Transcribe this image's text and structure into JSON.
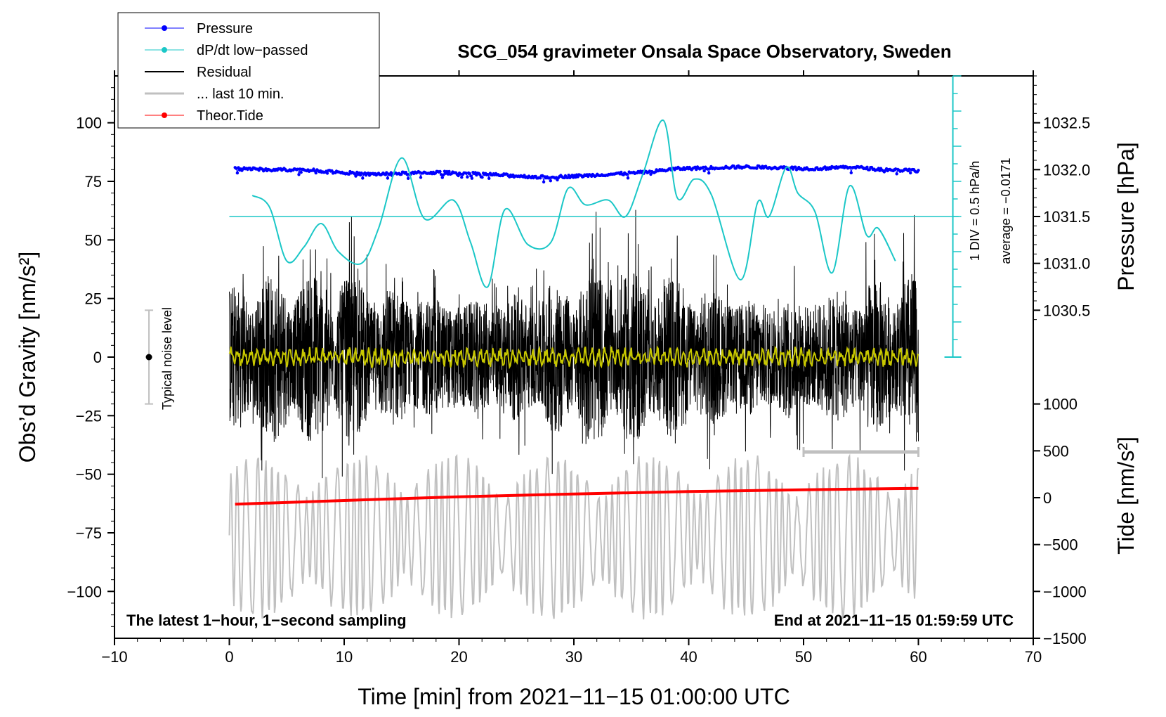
{
  "chart_data": {
    "type": "line",
    "title": "SCG_054 gravimeter Onsala Space Observatory, Sweden",
    "xlabel": "Time [min] from 2021−11−15 01:00:00 UTC",
    "ylabel_left": "Obs’d Gravity [nm/s²]",
    "ylabel_right_pressure": "Pressure [hPa]",
    "ylabel_right_tide": "Tide [nm/s²]",
    "xlim": [
      -10,
      70
    ],
    "ylim_left": [
      -120,
      120
    ],
    "x_ticks": [
      -10,
      0,
      10,
      20,
      30,
      40,
      50,
      60,
      70
    ],
    "x_tick_labels": [
      "−10",
      "0",
      "10",
      "20",
      "30",
      "40",
      "50",
      "60",
      "70"
    ],
    "y_ticks_left": [
      100,
      75,
      50,
      25,
      0,
      -25,
      -50,
      -75,
      -100
    ],
    "y_tick_labels_left": [
      "100",
      "75",
      "50",
      "25",
      "0",
      "−25",
      "−50",
      "−75",
      "−100"
    ],
    "pressure_axis": {
      "ticks": [
        1032.5,
        1032.0,
        1031.5,
        1031.0,
        1030.5
      ],
      "tick_labels": [
        "1032.5",
        "1032.0",
        "1031.5",
        "1031.0",
        "1030.5"
      ],
      "left_equivalent": [
        [
          1032.5,
          100
        ],
        [
          1030.5,
          20
        ]
      ]
    },
    "tide_axis": {
      "ticks": [
        1000,
        500,
        0,
        -500,
        -1000,
        -1500
      ],
      "tick_labels": [
        "1000",
        "500",
        "0",
        "−500",
        "−1000",
        "−1500"
      ],
      "left_equivalent": [
        [
          1000,
          -20
        ],
        [
          -1500,
          -120
        ]
      ]
    },
    "series": [
      {
        "name": "Pressure",
        "color": "#0000ff",
        "axis": "pressure",
        "x": [
          0.5,
          3,
          6,
          9,
          12,
          15,
          18,
          21,
          24,
          27,
          30,
          33,
          36,
          39,
          42,
          45,
          48,
          51,
          54,
          57,
          60
        ],
        "values": [
          1032.02,
          1032.0,
          1032.0,
          1031.98,
          1031.95,
          1031.96,
          1031.97,
          1031.96,
          1031.94,
          1031.92,
          1031.93,
          1031.95,
          1031.97,
          1032.01,
          1032.02,
          1032.03,
          1032.02,
          1032.01,
          1032.03,
          1032.0,
          1031.99
        ]
      },
      {
        "name": "dP/dt low−passed",
        "color": "#1bc7c7",
        "axis": "left",
        "x": [
          2,
          3.5,
          5,
          6.5,
          8,
          9.5,
          11.5,
          13,
          15,
          17,
          19.5,
          21,
          22.5,
          24,
          26,
          28,
          29.5,
          31,
          33,
          34.5,
          36,
          37.8,
          39,
          40.5,
          42,
          44.5,
          46,
          47,
          48.5,
          49.5,
          51,
          52.5,
          54,
          55.5,
          56.5,
          58
        ],
        "values": [
          69,
          64,
          41,
          47,
          57,
          45,
          40,
          55,
          85,
          59,
          67,
          49,
          30,
          63,
          48,
          49,
          72,
          65,
          67,
          60,
          78,
          101,
          68,
          76,
          69,
          33,
          66,
          60,
          81,
          70,
          62,
          36,
          73,
          52,
          55,
          41
        ]
      },
      {
        "name": "Residual",
        "color": "#000000",
        "axis": "left",
        "amplitude_range": [
          -50,
          50
        ]
      },
      {
        "name": "... last 10 min.",
        "color": "#c0c0c0",
        "axis": "tide",
        "amplitude_range": [
          -1500,
          500
        ]
      },
      {
        "name": "Theor.Tide",
        "color": "#ff0000",
        "axis": "tide",
        "x": [
          0.5,
          10,
          20,
          30,
          40,
          50,
          60
        ],
        "values": [
          -70,
          -30,
          10,
          40,
          65,
          85,
          100
        ]
      }
    ],
    "legend": [
      "Pressure",
      "dP/dt low−passed",
      "Residual",
      "... last 10 min.",
      "Theor.Tide"
    ],
    "legend_position": "top-left",
    "annotations": {
      "noise": "Typical noise level",
      "div": "1 DIV = 0.5 hPa/h",
      "average": "average = −0.0171",
      "footer_left": "The latest 1−hour, 1−second sampling",
      "footer_right": "End at 2021−11−15 01:59:59 UTC"
    }
  }
}
